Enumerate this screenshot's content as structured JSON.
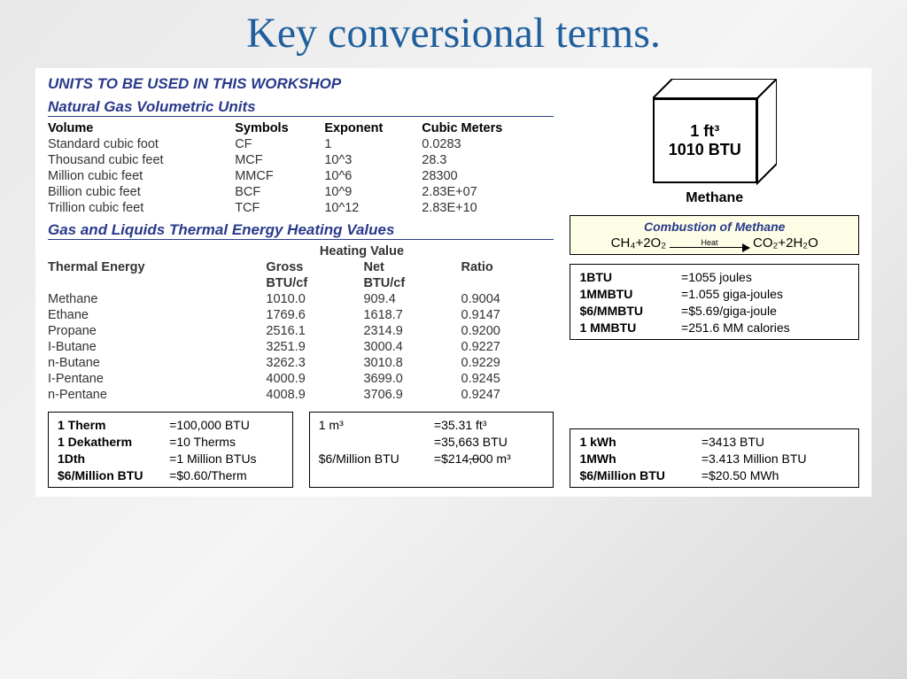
{
  "title": "Key conversional terms.",
  "workshop_label": "UNITS TO BE USED IN THIS WORKSHOP",
  "volumetric": {
    "heading": "Natural Gas Volumetric Units",
    "columns": [
      "Volume",
      "Symbols",
      "Exponent",
      "Cubic Meters"
    ],
    "rows": [
      [
        "Standard cubic foot",
        "CF",
        "1",
        "0.0283"
      ],
      [
        "Thousand cubic feet",
        "MCF",
        "10^3",
        "28.3"
      ],
      [
        "Million cubic feet",
        "MMCF",
        "10^6",
        "28300"
      ],
      [
        "Billion cubic feet",
        "BCF",
        "10^9",
        "2.83E+07"
      ],
      [
        "Trillion cubic feet",
        "TCF",
        "10^12",
        "2.83E+10"
      ]
    ]
  },
  "thermal": {
    "heading": "Gas and Liquids Thermal Energy Heating Values",
    "group": "Heating Value",
    "col0": "Thermal Energy",
    "sub": [
      "Gross",
      "Net",
      "Ratio"
    ],
    "unit": "BTU/cf",
    "rows": [
      [
        "Methane",
        "1010.0",
        "909.4",
        "0.9004"
      ],
      [
        "Ethane",
        "1769.6",
        "1618.7",
        "0.9147"
      ],
      [
        "Propane",
        "2516.1",
        "2314.9",
        "0.9200"
      ],
      [
        "I-Butane",
        "3251.9",
        "3000.4",
        "0.9227"
      ],
      [
        "n-Butane",
        "3262.3",
        "3010.8",
        "0.9229"
      ],
      [
        "I-Pentane",
        "4000.9",
        "3699.0",
        "0.9245"
      ],
      [
        "n-Pentane",
        "4008.9",
        "3706.9",
        "0.9247"
      ]
    ]
  },
  "box_a": [
    [
      "1 Therm",
      "=100,000 BTU"
    ],
    [
      "1 Dekatherm",
      "=10 Therms"
    ],
    [
      "1Dth",
      "=1 Million BTUs"
    ],
    [
      "$6/Million BTU",
      "=$0.60/Therm"
    ]
  ],
  "box_b": {
    "r1l": "1 m³",
    "r1r": "=35.31 ft³",
    "r2r": "=35,663 BTU",
    "r3l": "$6/Million BTU",
    "r3r": "=$214,000 m³",
    "r3r_strike": ",0"
  },
  "cube": {
    "line1": "1 ft³",
    "line2": "1010 BTU",
    "label": "Methane"
  },
  "combustion": {
    "title": "Combustion of Methane",
    "lhs": "CH₄+2O₂",
    "heat": "Heat",
    "rhs": "CO₂+2H₂O"
  },
  "box_c": [
    [
      "1BTU",
      "=1055 joules"
    ],
    [
      "1MMBTU",
      "=1.055 giga-joules"
    ],
    [
      "$6/MMBTU",
      "=$5.69/giga-joule"
    ],
    [
      "1 MMBTU",
      "=251.6 MM calories"
    ]
  ],
  "box_d": [
    [
      "1 kWh",
      "=3413 BTU"
    ],
    [
      "1MWh",
      "=3.413 Million BTU"
    ],
    [
      "$6/Million BTU",
      "=$20.50 MWh"
    ]
  ],
  "colors": {
    "title": "#1f5f9e",
    "section": "#2a3a8a",
    "bg_combustion": "#fefde6"
  }
}
